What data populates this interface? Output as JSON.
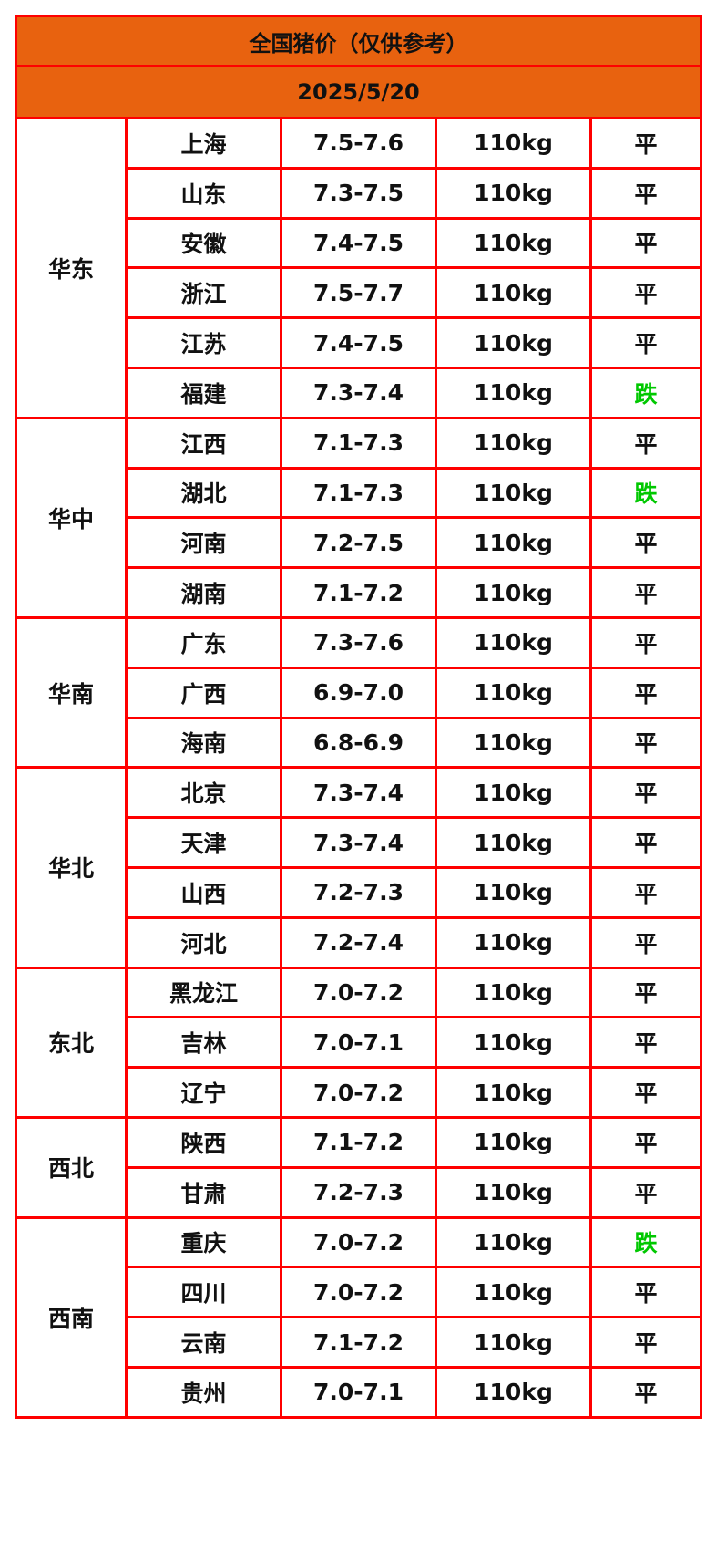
{
  "title": "全国猪价（仅供参考）",
  "date": "2025/5/20",
  "colors": {
    "header_bg": "#e8620f",
    "border": "#ff0000",
    "trend_down": "#00c800",
    "trend_flat": "#111111"
  },
  "regions": [
    {
      "name": "华东",
      "provinces": [
        {
          "name": "上海",
          "price": "7.5-7.6",
          "weight": "110kg",
          "trend": "平"
        },
        {
          "name": "山东",
          "price": "7.3-7.5",
          "weight": "110kg",
          "trend": "平"
        },
        {
          "name": "安徽",
          "price": "7.4-7.5",
          "weight": "110kg",
          "trend": "平"
        },
        {
          "name": "浙江",
          "price": "7.5-7.7",
          "weight": "110kg",
          "trend": "平"
        },
        {
          "name": "江苏",
          "price": "7.4-7.5",
          "weight": "110kg",
          "trend": "平"
        },
        {
          "name": "福建",
          "price": "7.3-7.4",
          "weight": "110kg",
          "trend": "跌"
        }
      ]
    },
    {
      "name": "华中",
      "provinces": [
        {
          "name": "江西",
          "price": "7.1-7.3",
          "weight": "110kg",
          "trend": "平"
        },
        {
          "name": "湖北",
          "price": "7.1-7.3",
          "weight": "110kg",
          "trend": "跌"
        },
        {
          "name": "河南",
          "price": "7.2-7.5",
          "weight": "110kg",
          "trend": "平"
        },
        {
          "name": "湖南",
          "price": "7.1-7.2",
          "weight": "110kg",
          "trend": "平"
        }
      ]
    },
    {
      "name": "华南",
      "provinces": [
        {
          "name": "广东",
          "price": "7.3-7.6",
          "weight": "110kg",
          "trend": "平"
        },
        {
          "name": "广西",
          "price": "6.9-7.0",
          "weight": "110kg",
          "trend": "平"
        },
        {
          "name": "海南",
          "price": "6.8-6.9",
          "weight": "110kg",
          "trend": "平"
        }
      ]
    },
    {
      "name": "华北",
      "provinces": [
        {
          "name": "北京",
          "price": "7.3-7.4",
          "weight": "110kg",
          "trend": "平"
        },
        {
          "name": "天津",
          "price": "7.3-7.4",
          "weight": "110kg",
          "trend": "平"
        },
        {
          "name": "山西",
          "price": "7.2-7.3",
          "weight": "110kg",
          "trend": "平"
        },
        {
          "name": "河北",
          "price": "7.2-7.4",
          "weight": "110kg",
          "trend": "平"
        }
      ]
    },
    {
      "name": "东北",
      "provinces": [
        {
          "name": "黑龙江",
          "price": "7.0-7.2",
          "weight": "110kg",
          "trend": "平"
        },
        {
          "name": "吉林",
          "price": "7.0-7.1",
          "weight": "110kg",
          "trend": "平"
        },
        {
          "name": "辽宁",
          "price": "7.0-7.2",
          "weight": "110kg",
          "trend": "平"
        }
      ]
    },
    {
      "name": "西北",
      "provinces": [
        {
          "name": "陕西",
          "price": "7.1-7.2",
          "weight": "110kg",
          "trend": "平"
        },
        {
          "name": "甘肃",
          "price": "7.2-7.3",
          "weight": "110kg",
          "trend": "平"
        }
      ]
    },
    {
      "name": "西南",
      "provinces": [
        {
          "name": "重庆",
          "price": "7.0-7.2",
          "weight": "110kg",
          "trend": "跌"
        },
        {
          "name": "四川",
          "price": "7.0-7.2",
          "weight": "110kg",
          "trend": "平"
        },
        {
          "name": "云南",
          "price": "7.1-7.2",
          "weight": "110kg",
          "trend": "平"
        },
        {
          "name": "贵州",
          "price": "7.0-7.1",
          "weight": "110kg",
          "trend": "平"
        }
      ]
    }
  ]
}
